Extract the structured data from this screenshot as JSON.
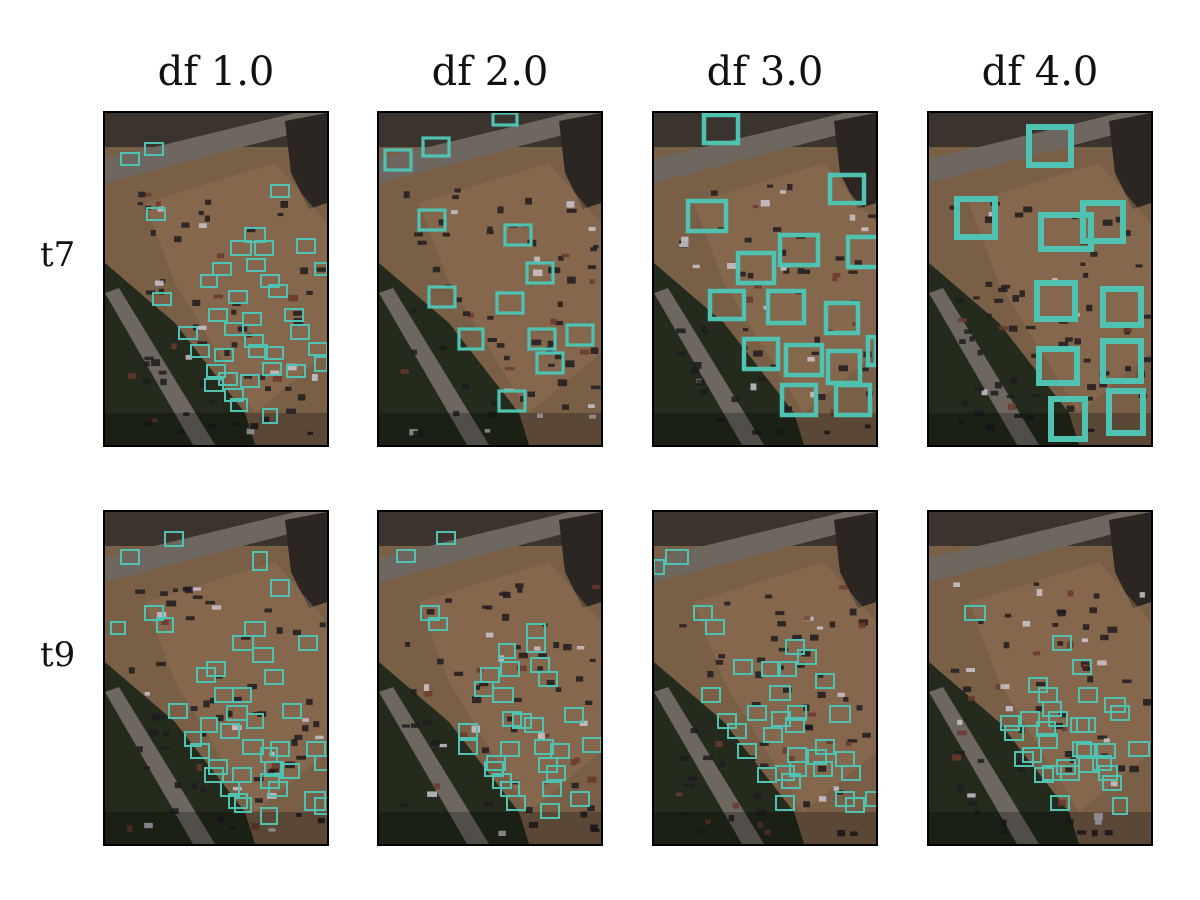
{
  "figure": {
    "columns": [
      {
        "label": "df 1.0"
      },
      {
        "label": "df 2.0"
      },
      {
        "label": "df 3.0"
      },
      {
        "label": "df 4.0"
      }
    ],
    "rows": [
      {
        "label": "t7"
      },
      {
        "label": "t9"
      }
    ],
    "panel_content": "aerial parking-lot image with vehicle detection boxes",
    "colors": {
      "detection_box": "#4fc2b2",
      "ground": "#7a5f47",
      "road": "#6d6760",
      "vegetation": "#252b1c",
      "frame": "#000000"
    }
  }
}
